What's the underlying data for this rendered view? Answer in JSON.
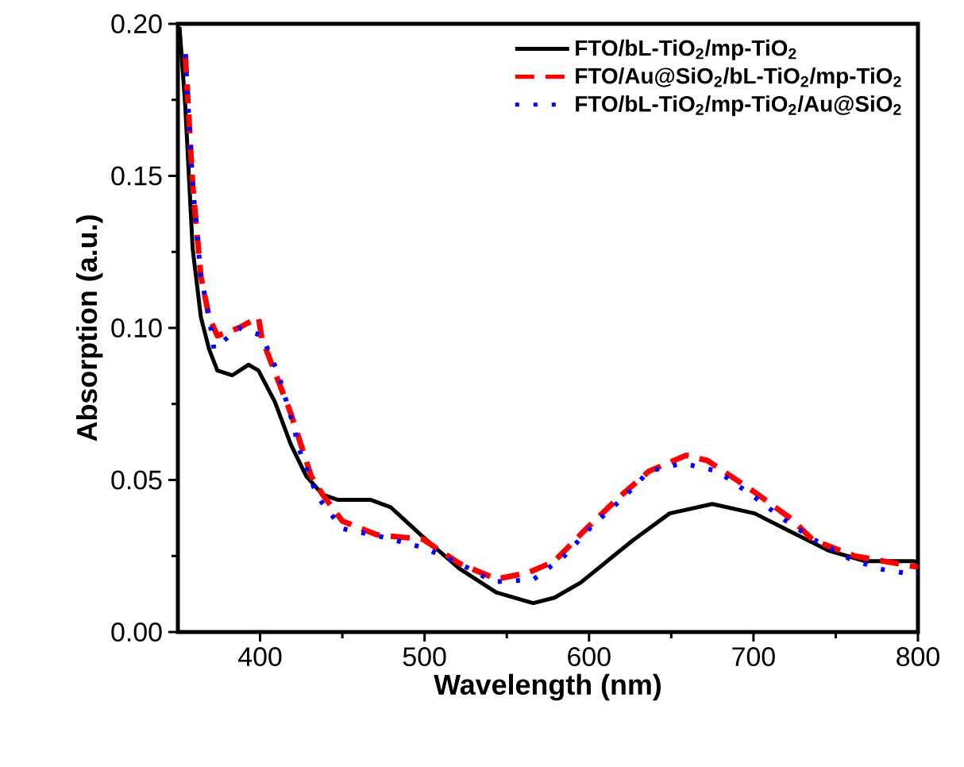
{
  "chart_data": {
    "type": "line",
    "xlabel": "Wavelength (nm)",
    "ylabel": "Absorption (a.u.)",
    "xlim": [
      350,
      800
    ],
    "ylim": [
      0,
      0.2
    ],
    "xticks": [
      400,
      500,
      600,
      700,
      800
    ],
    "yticks": [
      {
        "value": 0,
        "label": "0.00"
      },
      {
        "value": 0.05,
        "label": "0.05"
      },
      {
        "value": 0.1,
        "label": "0.10"
      },
      {
        "value": 0.15,
        "label": "0.15"
      },
      {
        "value": 0.2,
        "label": "0.20"
      }
    ],
    "legend": "top right",
    "grid": false,
    "marker": "none",
    "series": [
      {
        "name": "FTO/bL-TiO$_{2}$/mp-TiO$_{2}$",
        "color": "#000000",
        "line_style": "solid",
        "x": [
          351,
          354.5,
          359,
          364,
          369,
          374,
          383,
          393,
          399,
          409,
          418.6,
          428,
          438,
          447,
          467,
          479.5,
          499,
          521,
          543.6,
          566,
          579,
          595,
          627,
          649,
          675,
          700.7,
          723,
          745.5,
          768,
          797,
          800
        ],
        "values": [
          0.199,
          0.173,
          0.126,
          0.1035,
          0.093,
          0.086,
          0.0844,
          0.0879,
          0.086,
          0.0757,
          0.0618,
          0.0513,
          0.0452,
          0.0435,
          0.0435,
          0.041,
          0.0313,
          0.0209,
          0.013,
          0.0095,
          0.0113,
          0.0163,
          0.0303,
          0.039,
          0.0421,
          0.039,
          0.0329,
          0.0268,
          0.0233,
          0.0233,
          0.023
        ]
      },
      {
        "name": "FTO/Au@SiO$_{2}$/bL-TiO$_{2}$/mp-TiO$_{2}$",
        "color": "#ff0000",
        "line_style": "dashed",
        "x": [
          354.5,
          359,
          364,
          369,
          374,
          387,
          399,
          401,
          418.6,
          431,
          438,
          450,
          471,
          499,
          521,
          543.6,
          563,
          579,
          598,
          618,
          636.5,
          659,
          672,
          700.7,
          723,
          736,
          761.5,
          797,
          800
        ],
        "values": [
          0.19,
          0.147,
          0.117,
          0.1035,
          0.0974,
          0.1,
          0.1035,
          0.0966,
          0.072,
          0.0513,
          0.0452,
          0.0365,
          0.032,
          0.0305,
          0.0226,
          0.0174,
          0.0195,
          0.0233,
          0.0338,
          0.0442,
          0.0529,
          0.0581,
          0.0564,
          0.046,
          0.0372,
          0.0303,
          0.025,
          0.0216,
          0.0215
        ]
      },
      {
        "name": "FTO/bL-TiO$_{2}$/mp-TiO$_{2}$/Au@SiO$_{2}$",
        "color": "#0000ff",
        "line_style": "dotted",
        "x": [
          354.5,
          359,
          364,
          369,
          372,
          387,
          401,
          411,
          418.6,
          425,
          435,
          450,
          474,
          499,
          521,
          542,
          566,
          585,
          603,
          621,
          636.5,
          657,
          678,
          699,
          718,
          737,
          758,
          777,
          797,
          800
        ],
        "values": [
          0.19,
          0.147,
          0.117,
          0.1035,
          0.093,
          0.1,
          0.0975,
          0.085,
          0.071,
          0.058,
          0.0444,
          0.034,
          0.0313,
          0.0278,
          0.0226,
          0.0165,
          0.0172,
          0.025,
          0.0355,
          0.0442,
          0.0529,
          0.0555,
          0.0529,
          0.045,
          0.0372,
          0.0303,
          0.0242,
          0.0207,
          0.019,
          0.019
        ]
      }
    ]
  }
}
